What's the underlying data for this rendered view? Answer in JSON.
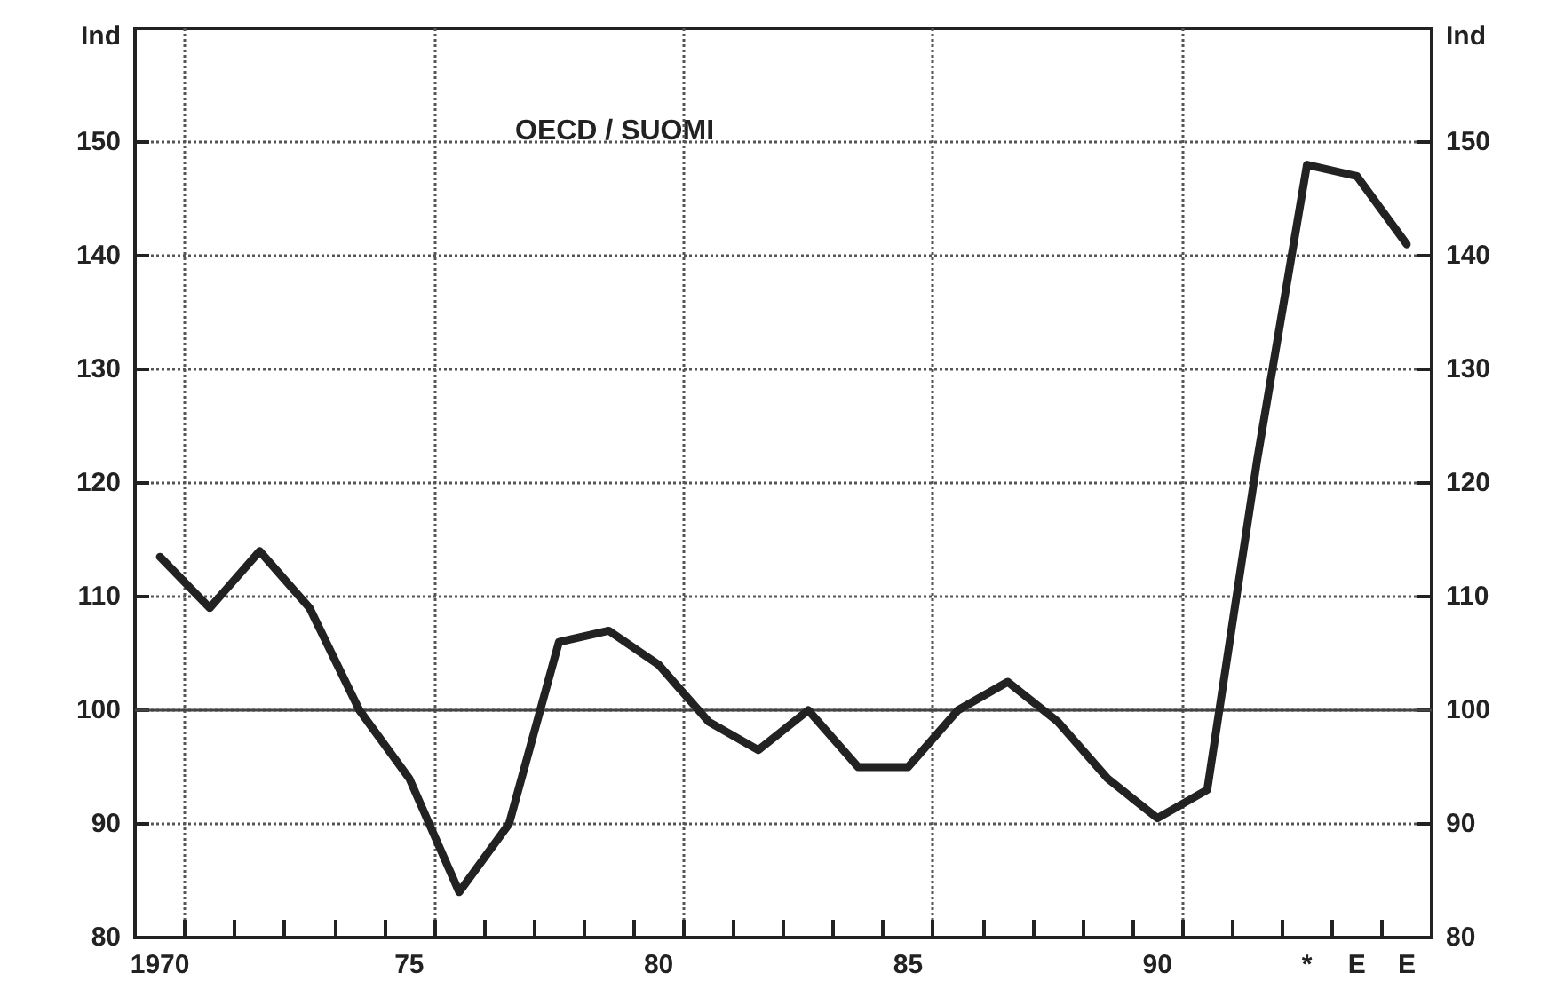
{
  "chart_data": {
    "type": "line",
    "ylabel": "Ind",
    "y2label": "Ind",
    "annotations": [
      "OECD / SUOMI"
    ],
    "categories": [
      "1970",
      null,
      null,
      null,
      null,
      "75",
      null,
      null,
      null,
      null,
      "80",
      null,
      null,
      null,
      null,
      "85",
      null,
      null,
      null,
      null,
      "90",
      null,
      null,
      "*",
      "E",
      "E"
    ],
    "series": [
      {
        "color": "#222222",
        "values": [
          113.5,
          109,
          114,
          109,
          100,
          94,
          84,
          90,
          106,
          107,
          104,
          99,
          96.5,
          100,
          95,
          95,
          100,
          102.5,
          99,
          94,
          90.5,
          93,
          122,
          148,
          147,
          141
        ]
      }
    ],
    "ylim": [
      80,
      160
    ],
    "yticks": [
      80,
      90,
      100,
      110,
      120,
      130,
      140,
      150
    ],
    "y2lim": [
      80,
      160
    ],
    "y2ticks": [
      80,
      90,
      100,
      110,
      120,
      130,
      140,
      150
    ],
    "ref_lines": [
      {
        "axis": "y",
        "value": 100,
        "color": "#444444",
        "line_style": "solid"
      }
    ],
    "grid": true,
    "marker": "none",
    "line_style": "solid"
  }
}
